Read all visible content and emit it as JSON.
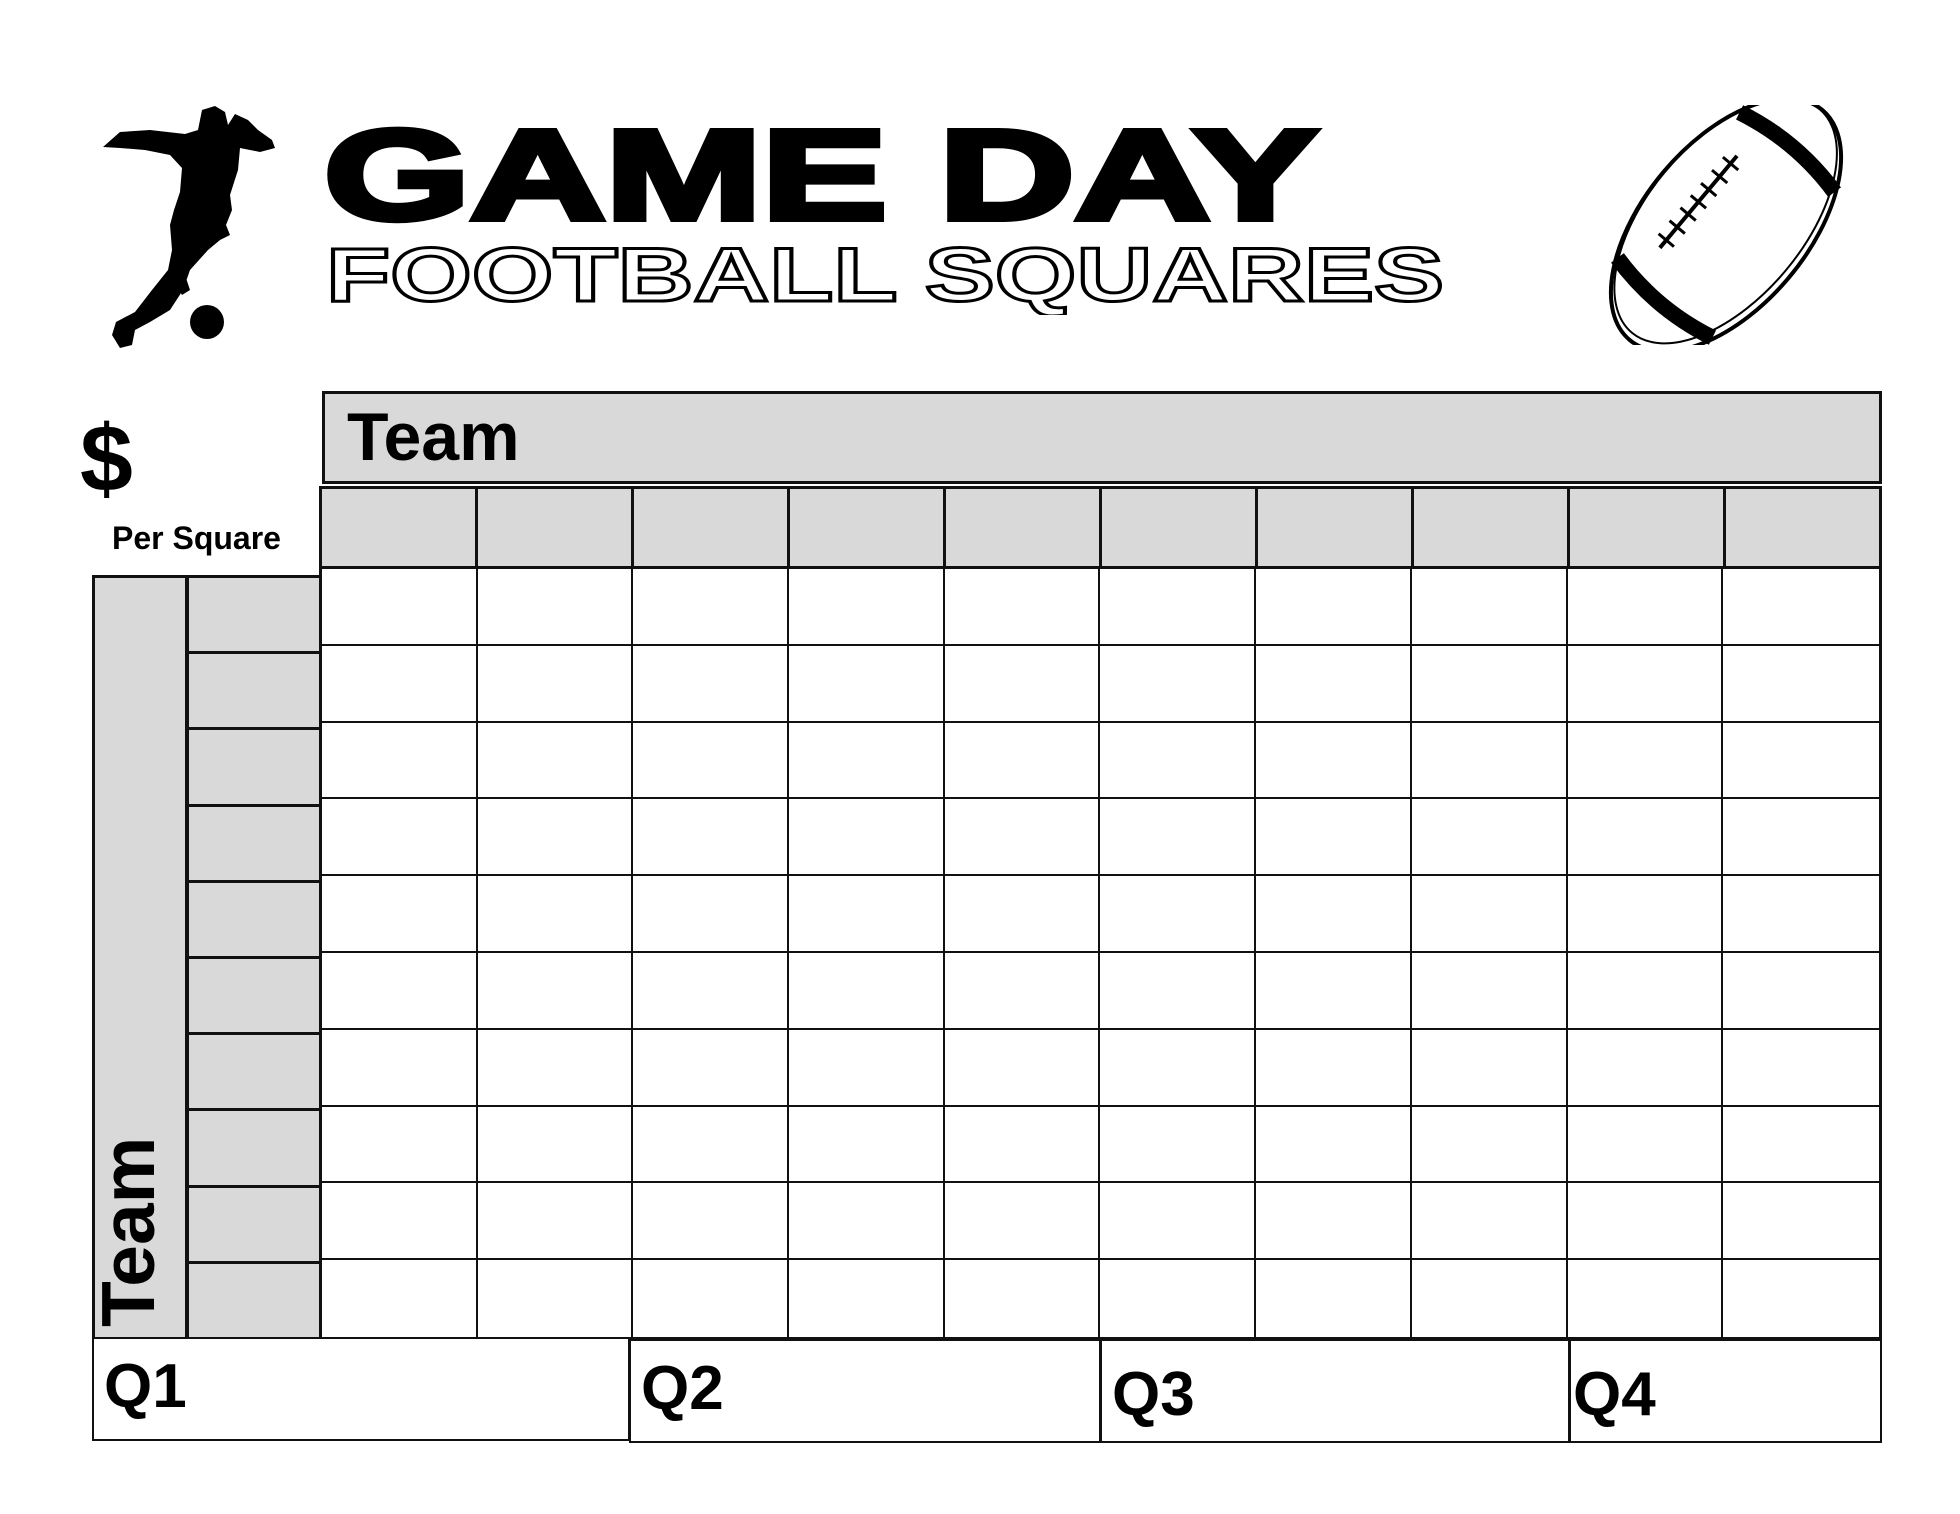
{
  "title": {
    "main": "GAME DAY",
    "sub": "FOOTBALL SQUARES"
  },
  "price": {
    "symbol": "$",
    "label": "Per Square"
  },
  "board": {
    "top_team_label": "Team",
    "side_team_label": "Team",
    "columns": 10,
    "rows": 10
  },
  "quarters": [
    "Q1",
    "Q2",
    "Q3",
    "Q4"
  ],
  "icons": {
    "left": "soccer-player-silhouette-icon",
    "right": "football-icon"
  },
  "colors": {
    "header_fill": "#d9d9d9",
    "lines": "#111111"
  }
}
